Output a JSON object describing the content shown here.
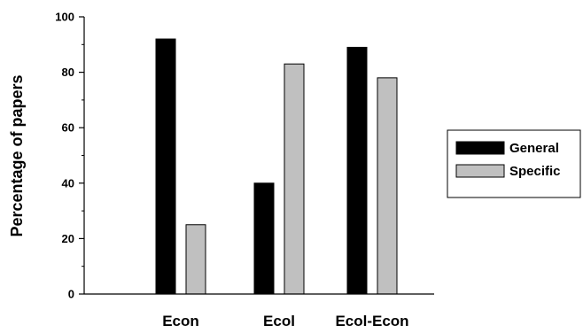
{
  "chart_data": {
    "type": "bar",
    "categories": [
      "Econ",
      "Ecol",
      "Ecol-Econ"
    ],
    "series": [
      {
        "name": "General",
        "values": [
          92,
          40,
          89
        ],
        "color": "#000000"
      },
      {
        "name": "Specific",
        "values": [
          25,
          83,
          78
        ],
        "color": "#c0c0c0"
      }
    ],
    "ylabel": "Percentage of papers",
    "xlabel": "",
    "ylim": [
      0,
      100
    ],
    "yticks": [
      0,
      20,
      40,
      60,
      80,
      100
    ],
    "grid": false,
    "legend_position": "right"
  }
}
